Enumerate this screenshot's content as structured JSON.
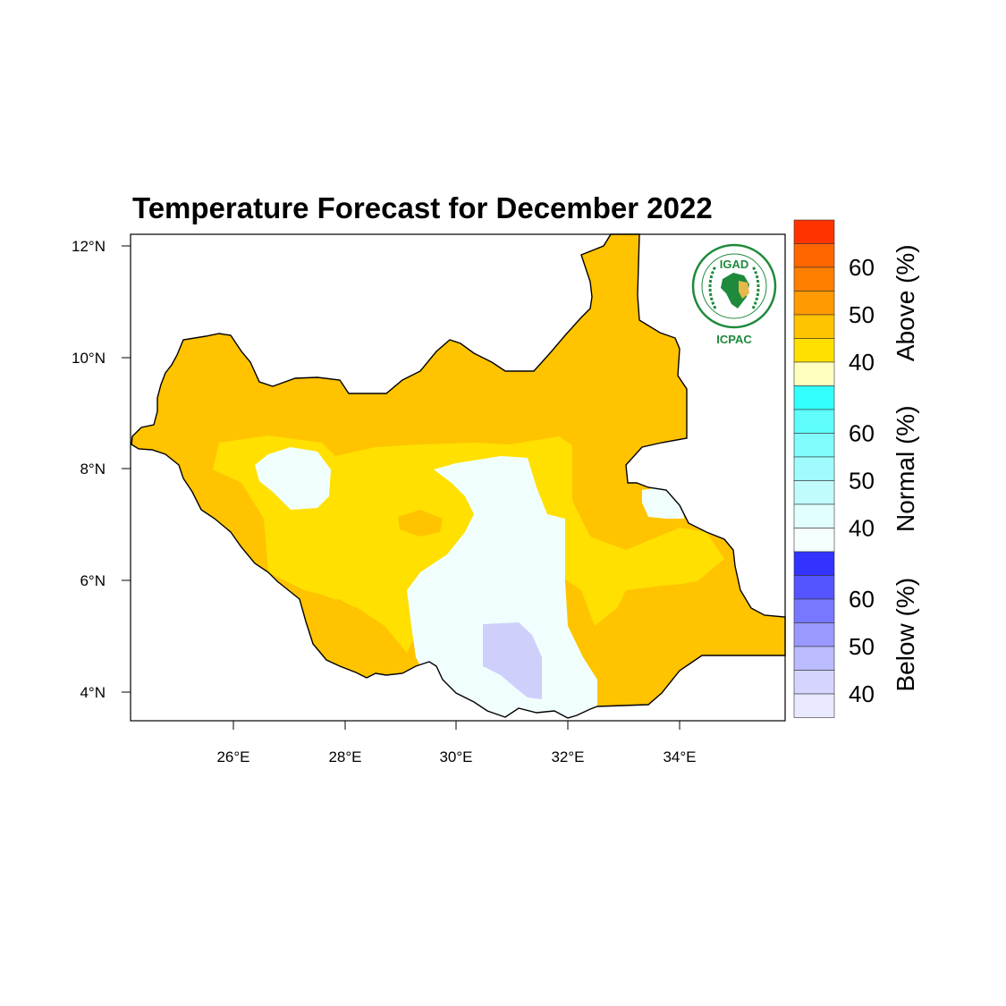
{
  "title": "Temperature Forecast for December 2022",
  "axes": {
    "lat_ticks": [
      "12°N",
      "10°N",
      "8°N",
      "6°N",
      "4°N"
    ],
    "lon_ticks": [
      "26°E",
      "28°E",
      "30°E",
      "32°E",
      "34°E"
    ]
  },
  "logo": {
    "top": "IGAD",
    "bottom": "ICPAC"
  },
  "legend": {
    "categories": [
      {
        "name": "Above (%)",
        "labels": [
          "60",
          "50",
          "40"
        ],
        "colors": [
          "#ff3300",
          "#ff6600",
          "#ff7f00",
          "#ff9a00",
          "#ffc300",
          "#ffe000",
          "#ffffc0"
        ]
      },
      {
        "name": "Normal (%)",
        "labels": [
          "60",
          "50",
          "40"
        ],
        "colors": [
          "#33ffff",
          "#5ffcfc",
          "#80fcfc",
          "#a0fcfc",
          "#c0fcfc",
          "#e0fffe",
          "#f4fffe"
        ]
      },
      {
        "name": "Below (%)",
        "labels": [
          "60",
          "50",
          "40"
        ],
        "colors": [
          "#3333ff",
          "#5555ff",
          "#7777ff",
          "#9999ff",
          "#bbbbff",
          "#d4d4ff",
          "#e8e8ff"
        ]
      }
    ]
  },
  "map_colors": {
    "above_high": "#ffc300",
    "above_low": "#ffe000",
    "normal": "#f0fffe",
    "below": "#cfcffc",
    "border": "#000000"
  }
}
